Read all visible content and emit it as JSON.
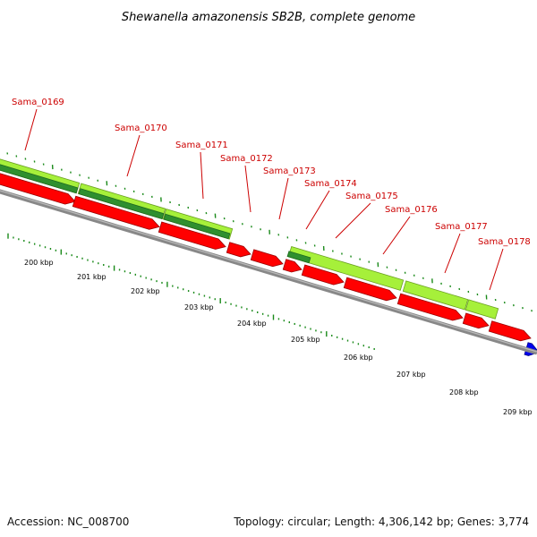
{
  "title": "Shewanella amazonensis SB2B, complete genome",
  "footer": {
    "accession": "Accession: NC_008700",
    "info": "Topology: circular; Length: 4,306,142 bp; Genes: 3,774"
  },
  "colors": {
    "gene_forward": "#ff0000",
    "cds_light": "#a6f03a",
    "cds_dark": "#2f8f2f",
    "backbone": "#888888",
    "ticks": "#1a8a1a",
    "label": "#cc0000",
    "blue_feature": "#0000ee"
  },
  "gene_labels": [
    "Sama_0169",
    "Sama_0170",
    "Sama_0171",
    "Sama_0172",
    "Sama_0173",
    "Sama_0174",
    "Sama_0175",
    "Sama_0176",
    "Sama_0177",
    "Sama_0178"
  ],
  "kbp_labels": [
    "200 kbp",
    "201 kbp",
    "202 kbp",
    "203 kbp",
    "204 kbp",
    "205 kbp",
    "206 kbp",
    "207 kbp",
    "208 kbp",
    "209 kbp"
  ]
}
